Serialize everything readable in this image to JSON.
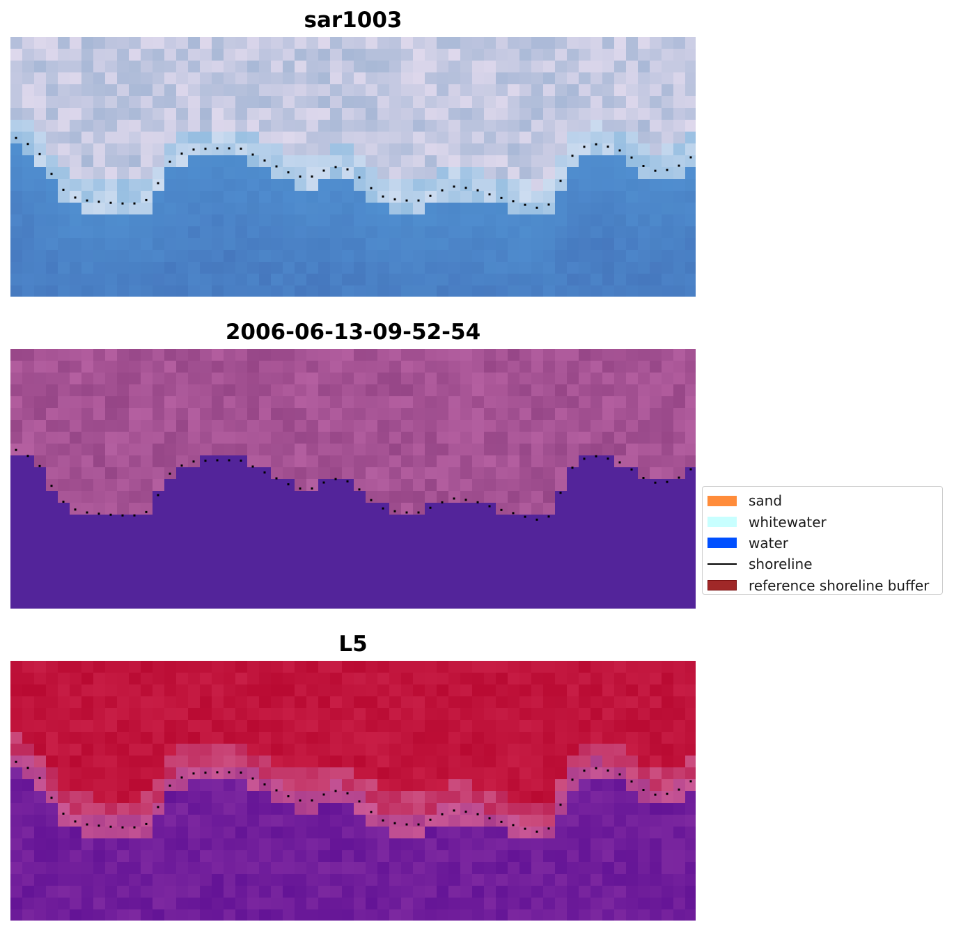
{
  "panels": [
    {
      "title": "sar1003",
      "style": "rgb"
    },
    {
      "title": "2006-06-13-09-52-54",
      "style": "class"
    },
    {
      "title": "L5",
      "style": "prob"
    }
  ],
  "colors": {
    "class_land": "#a15a94",
    "class_water": "#53249a",
    "prob_land": "#c0143c",
    "prob_water": "#6a1a9a",
    "shoreline_dots": "#000000"
  },
  "legend": {
    "items": [
      {
        "label": "sand",
        "type": "patch",
        "color": "#ff8c3a",
        "border": "#ff8c3a"
      },
      {
        "label": "whitewater",
        "type": "patch",
        "color": "#c8ffff",
        "border": "#c8ffff"
      },
      {
        "label": "water",
        "type": "patch",
        "color": "#0050ff",
        "border": "#0050ff"
      },
      {
        "label": "shoreline",
        "type": "line",
        "color": "#000000",
        "border": "#000000"
      },
      {
        "label": "reference shoreline buffer",
        "type": "patch",
        "color": "#a02828",
        "border": "#7a1010"
      }
    ]
  }
}
